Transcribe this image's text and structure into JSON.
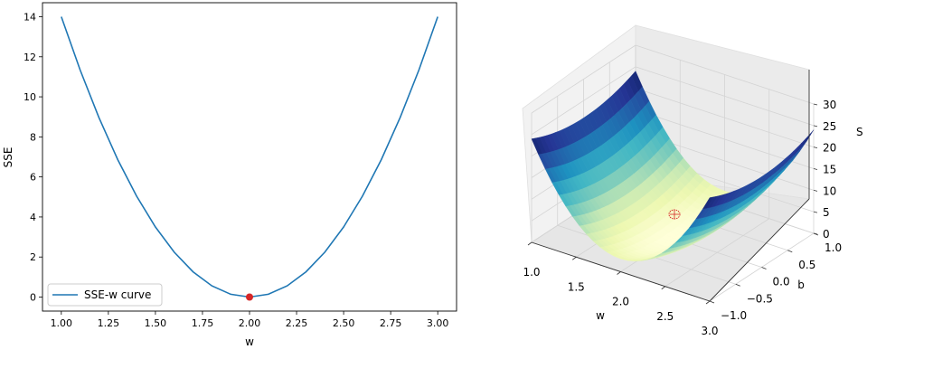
{
  "chart_data": [
    {
      "type": "line",
      "xlabel": "w",
      "ylabel": "SSE",
      "xlim": [
        0.9,
        3.1
      ],
      "ylim": [
        -0.7,
        14.7
      ],
      "x_ticks": [
        1.0,
        1.25,
        1.5,
        1.75,
        2.0,
        2.25,
        2.5,
        2.75,
        3.0
      ],
      "x_tick_labels": [
        "1.00",
        "1.25",
        "1.50",
        "1.75",
        "2.00",
        "2.25",
        "2.50",
        "2.75",
        "3.00"
      ],
      "y_ticks": [
        0,
        2,
        4,
        6,
        8,
        10,
        12,
        14
      ],
      "y_tick_labels": [
        "0",
        "2",
        "4",
        "6",
        "8",
        "10",
        "12",
        "14"
      ],
      "grid": false,
      "legend_location": "lower-left",
      "series": [
        {
          "name": "SSE-w curve",
          "color": "#1f77b4",
          "x": [
            1.0,
            1.1,
            1.2,
            1.3,
            1.4,
            1.5,
            1.6,
            1.7,
            1.8,
            1.9,
            2.0,
            2.1,
            2.2,
            2.3,
            2.4,
            2.5,
            2.6,
            2.7,
            2.8,
            2.9,
            3.0
          ],
          "y": [
            14.0,
            11.34,
            8.96,
            6.86,
            5.04,
            3.5,
            2.24,
            1.26,
            0.56,
            0.14,
            0.0,
            0.14,
            0.56,
            1.26,
            2.24,
            3.5,
            5.04,
            6.86,
            8.96,
            11.34,
            14.0
          ]
        }
      ],
      "minimum_point": {
        "x": 2.0,
        "y": 0.0,
        "color": "#d62728"
      }
    },
    {
      "type": "surface",
      "xlabel": "w",
      "ylabel": "b",
      "zlabel": "S",
      "x_ticks": [
        "1.0",
        "1.5",
        "2.0",
        "2.5",
        "3.0"
      ],
      "y_ticks": [
        "−1.0",
        "−0.5",
        "0.0",
        "0.5",
        "1.0"
      ],
      "z_ticks": [
        "0",
        "5",
        "10",
        "15",
        "20",
        "25",
        "30"
      ],
      "xlim": [
        1.0,
        3.0
      ],
      "ylim": [
        -1.0,
        1.0
      ],
      "zlim": [
        0,
        30
      ],
      "colormap": "YlGnBu",
      "colormap_colors": [
        "#ffffd9",
        "#edf8b1",
        "#c7e9b4",
        "#7fcdbb",
        "#41b6c4",
        "#1d91c0",
        "#225ea8",
        "#253494",
        "#081d58"
      ],
      "grid": true,
      "minimum_point": {
        "w": 2.0,
        "b": 0.0,
        "sse": 0.0,
        "color": "#d62728"
      }
    }
  ]
}
